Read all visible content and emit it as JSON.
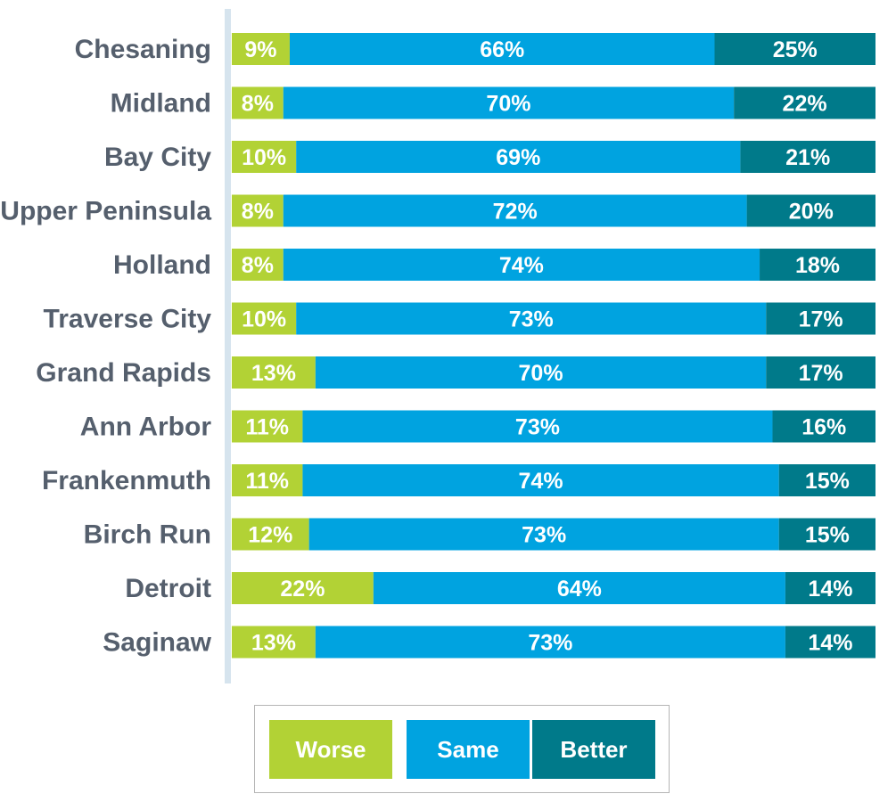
{
  "chart_data": {
    "type": "bar",
    "orientation": "horizontal",
    "stacked": true,
    "title": "",
    "xlabel": "",
    "ylabel": "",
    "xlim": [
      0,
      100
    ],
    "grid": false,
    "legend_position": "bottom",
    "categories": [
      "Chesaning",
      "Midland",
      "Bay City",
      "Upper Peninsula",
      "Holland",
      "Traverse City",
      "Grand Rapids",
      "Ann Arbor",
      "Frankenmuth",
      "Birch Run",
      "Detroit",
      "Saginaw"
    ],
    "series": [
      {
        "name": "Worse",
        "color": "#b2d235",
        "values": [
          9,
          8,
          10,
          8,
          8,
          10,
          13,
          11,
          11,
          12,
          22,
          13
        ],
        "labels": [
          "9%",
          "8%",
          "10%",
          "8%",
          "8%",
          "10%",
          "13%",
          "11%",
          "11%",
          "12%",
          "22%",
          "13%"
        ]
      },
      {
        "name": "Same",
        "color": "#00a3e0",
        "values": [
          66,
          70,
          69,
          72,
          74,
          73,
          70,
          73,
          74,
          73,
          64,
          73
        ],
        "labels": [
          "66%",
          "70%",
          "69%",
          "72%",
          "74%",
          "73%",
          "70%",
          "73%",
          "74%",
          "73%",
          "64%",
          "73%"
        ]
      },
      {
        "name": "Better",
        "color": "#007a8a",
        "values": [
          25,
          22,
          21,
          20,
          18,
          17,
          17,
          16,
          15,
          15,
          14,
          14
        ],
        "labels": [
          "25%",
          "22%",
          "21%",
          "20%",
          "18%",
          "17%",
          "17%",
          "16%",
          "15%",
          "15%",
          "14%",
          "14%"
        ]
      }
    ]
  },
  "legend": {
    "worse": "Worse",
    "same": "Same",
    "better": "Better"
  },
  "colors": {
    "axis": "#d6e4ee",
    "label_text": "#555f6d"
  }
}
